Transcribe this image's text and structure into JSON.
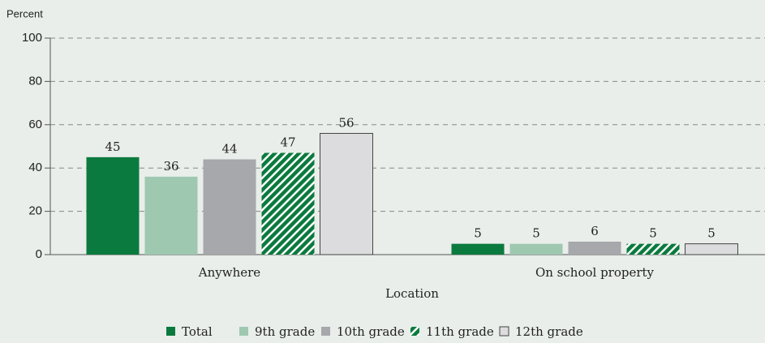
{
  "chart_data": {
    "type": "bar",
    "y_label": "Percent",
    "x_label": "Location",
    "categories": [
      "Anywhere",
      "On school property"
    ],
    "series": [
      {
        "name": "Total",
        "color": "#0b7a3e",
        "values": [
          45,
          5
        ]
      },
      {
        "name": "9th grade",
        "color": "#9fc8b1",
        "values": [
          36,
          5
        ]
      },
      {
        "name": "10th grade",
        "color": "#a6a8ab",
        "values": [
          44,
          6
        ]
      },
      {
        "name": "11th grade",
        "color": "#0b7a3e",
        "hatch": true,
        "values": [
          47,
          5
        ]
      },
      {
        "name": "12th grade",
        "color": "#dcdcdf",
        "outline": "#444444",
        "values": [
          56,
          5
        ]
      }
    ],
    "ylim": [
      0,
      100
    ],
    "yticks": [
      0,
      20,
      40,
      60,
      80,
      100
    ],
    "grid": true
  }
}
